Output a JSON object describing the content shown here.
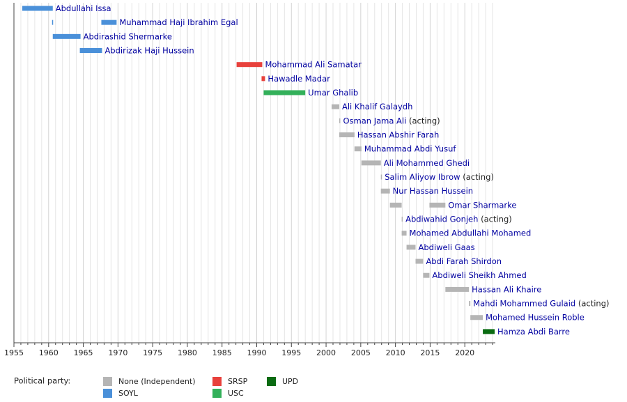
{
  "chart_data": {
    "type": "timeline",
    "xlim": [
      1955,
      2024.4
    ],
    "xticks": [
      1955,
      1960,
      1965,
      1970,
      1975,
      1980,
      1985,
      1990,
      1995,
      2000,
      2005,
      2010,
      2015,
      2020
    ],
    "xminorticks": [
      1956,
      1957,
      1958,
      1959,
      1961,
      1962,
      1963,
      1964,
      1966,
      1967,
      1968,
      1969,
      1971,
      1972,
      1973,
      1974,
      1976,
      1977,
      1978,
      1979,
      1981,
      1982,
      1983,
      1984,
      1986,
      1987,
      1988,
      1989,
      1991,
      1992,
      1993,
      1994,
      1996,
      1997,
      1998,
      1999,
      2001,
      2002,
      2003,
      2004,
      2006,
      2007,
      2008,
      2009,
      2011,
      2012,
      2013,
      2014,
      2016,
      2017,
      2018,
      2019,
      2021,
      2022,
      2023,
      2024
    ],
    "grid": true,
    "rows": [
      {
        "name": "Abdullahi Issa",
        "color": "#4a90d9",
        "segments": [
          {
            "start": 1956.2,
            "end": 1960.6
          }
        ]
      },
      {
        "name": "Muhammad Haji Ibrahim Egal",
        "color": "#4a90d9",
        "segments": [
          {
            "start": 1960.5,
            "end": 1960.6
          },
          {
            "start": 1967.6,
            "end": 1969.8
          }
        ]
      },
      {
        "name": "Abdirashid Shermarke",
        "color": "#4a90d9",
        "segments": [
          {
            "start": 1960.6,
            "end": 1964.6
          }
        ]
      },
      {
        "name": "Abdirizak Haji Hussein",
        "color": "#4a90d9",
        "segments": [
          {
            "start": 1964.5,
            "end": 1967.7
          }
        ]
      },
      {
        "name": "Mohammad Ali Samatar",
        "color": "#e8413c",
        "segments": [
          {
            "start": 1987.1,
            "end": 1990.8
          }
        ]
      },
      {
        "name": "Hawadle Madar",
        "color": "#e8413c",
        "segments": [
          {
            "start": 1990.7,
            "end": 1991.2
          }
        ]
      },
      {
        "name": "Umar Ghalib",
        "color": "#33b05a",
        "segments": [
          {
            "start": 1991.0,
            "end": 1997.0
          }
        ]
      },
      {
        "name": "Ali Khalif Galaydh",
        "color": "#b5b5b5",
        "segments": [
          {
            "start": 2000.8,
            "end": 2001.9
          }
        ]
      },
      {
        "name": "Osman Jama Ali",
        "note": "(acting)",
        "color": "#b5b5b5",
        "segments": [
          {
            "start": 2001.9,
            "end": 2002.0
          }
        ]
      },
      {
        "name": "Hassan Abshir Farah",
        "color": "#b5b5b5",
        "segments": [
          {
            "start": 2001.9,
            "end": 2004.1
          }
        ]
      },
      {
        "name": "Muhammad Abdi Yusuf",
        "color": "#b5b5b5",
        "segments": [
          {
            "start": 2004.1,
            "end": 2005.1
          }
        ]
      },
      {
        "name": "Ali Mohammed Ghedi",
        "color": "#b5b5b5",
        "segments": [
          {
            "start": 2005.1,
            "end": 2007.9
          }
        ]
      },
      {
        "name": "Salim Aliyow Ibrow",
        "note": "(acting)",
        "color": "#b5b5b5",
        "segments": [
          {
            "start": 2007.9,
            "end": 2008.0
          }
        ]
      },
      {
        "name": "Nur Hassan Hussein",
        "color": "#b5b5b5",
        "segments": [
          {
            "start": 2007.9,
            "end": 2009.2
          }
        ]
      },
      {
        "name": "Omar Sharmarke",
        "color": "#b5b5b5",
        "segments": [
          {
            "start": 2009.2,
            "end": 2010.9
          },
          {
            "start": 2014.9,
            "end": 2017.2
          }
        ]
      },
      {
        "name": "Abdiwahid Gonjeh",
        "note": "(acting)",
        "color": "#b5b5b5",
        "segments": [
          {
            "start": 2010.9,
            "end": 2011.0
          }
        ]
      },
      {
        "name": "Mohamed Abdullahi Mohamed",
        "color": "#b5b5b5",
        "segments": [
          {
            "start": 2010.9,
            "end": 2011.6
          }
        ]
      },
      {
        "name": "Abdiweli Gaas",
        "color": "#b5b5b5",
        "segments": [
          {
            "start": 2011.6,
            "end": 2012.9
          }
        ]
      },
      {
        "name": "Abdi Farah Shirdon",
        "color": "#b5b5b5",
        "segments": [
          {
            "start": 2012.9,
            "end": 2014.0
          }
        ]
      },
      {
        "name": "Abdiweli Sheikh Ahmed",
        "color": "#b5b5b5",
        "segments": [
          {
            "start": 2014.0,
            "end": 2014.9
          }
        ]
      },
      {
        "name": "Hassan Ali Khaire",
        "color": "#b5b5b5",
        "segments": [
          {
            "start": 2017.2,
            "end": 2020.6
          }
        ]
      },
      {
        "name": "Mahdi Mohammed Gulaid",
        "note": "(acting)",
        "color": "#b5b5b5",
        "segments": [
          {
            "start": 2020.6,
            "end": 2020.8
          }
        ]
      },
      {
        "name": "Mohamed Hussein Roble",
        "color": "#b5b5b5",
        "segments": [
          {
            "start": 2020.8,
            "end": 2022.6
          }
        ]
      },
      {
        "name": "Hamza Abdi Barre",
        "color": "#0a6b12",
        "segments": [
          {
            "start": 2022.6,
            "end": 2024.3
          }
        ]
      }
    ],
    "legend": {
      "title": "Political party:",
      "items": [
        {
          "name": "None (Independent)",
          "color": "#b5b5b5"
        },
        {
          "name": "SOYL",
          "color": "#4a90d9"
        },
        {
          "name": "SRSP",
          "color": "#e8413c"
        },
        {
          "name": "USC",
          "color": "#33b05a"
        },
        {
          "name": "UPD",
          "color": "#0a6b12"
        }
      ]
    }
  }
}
